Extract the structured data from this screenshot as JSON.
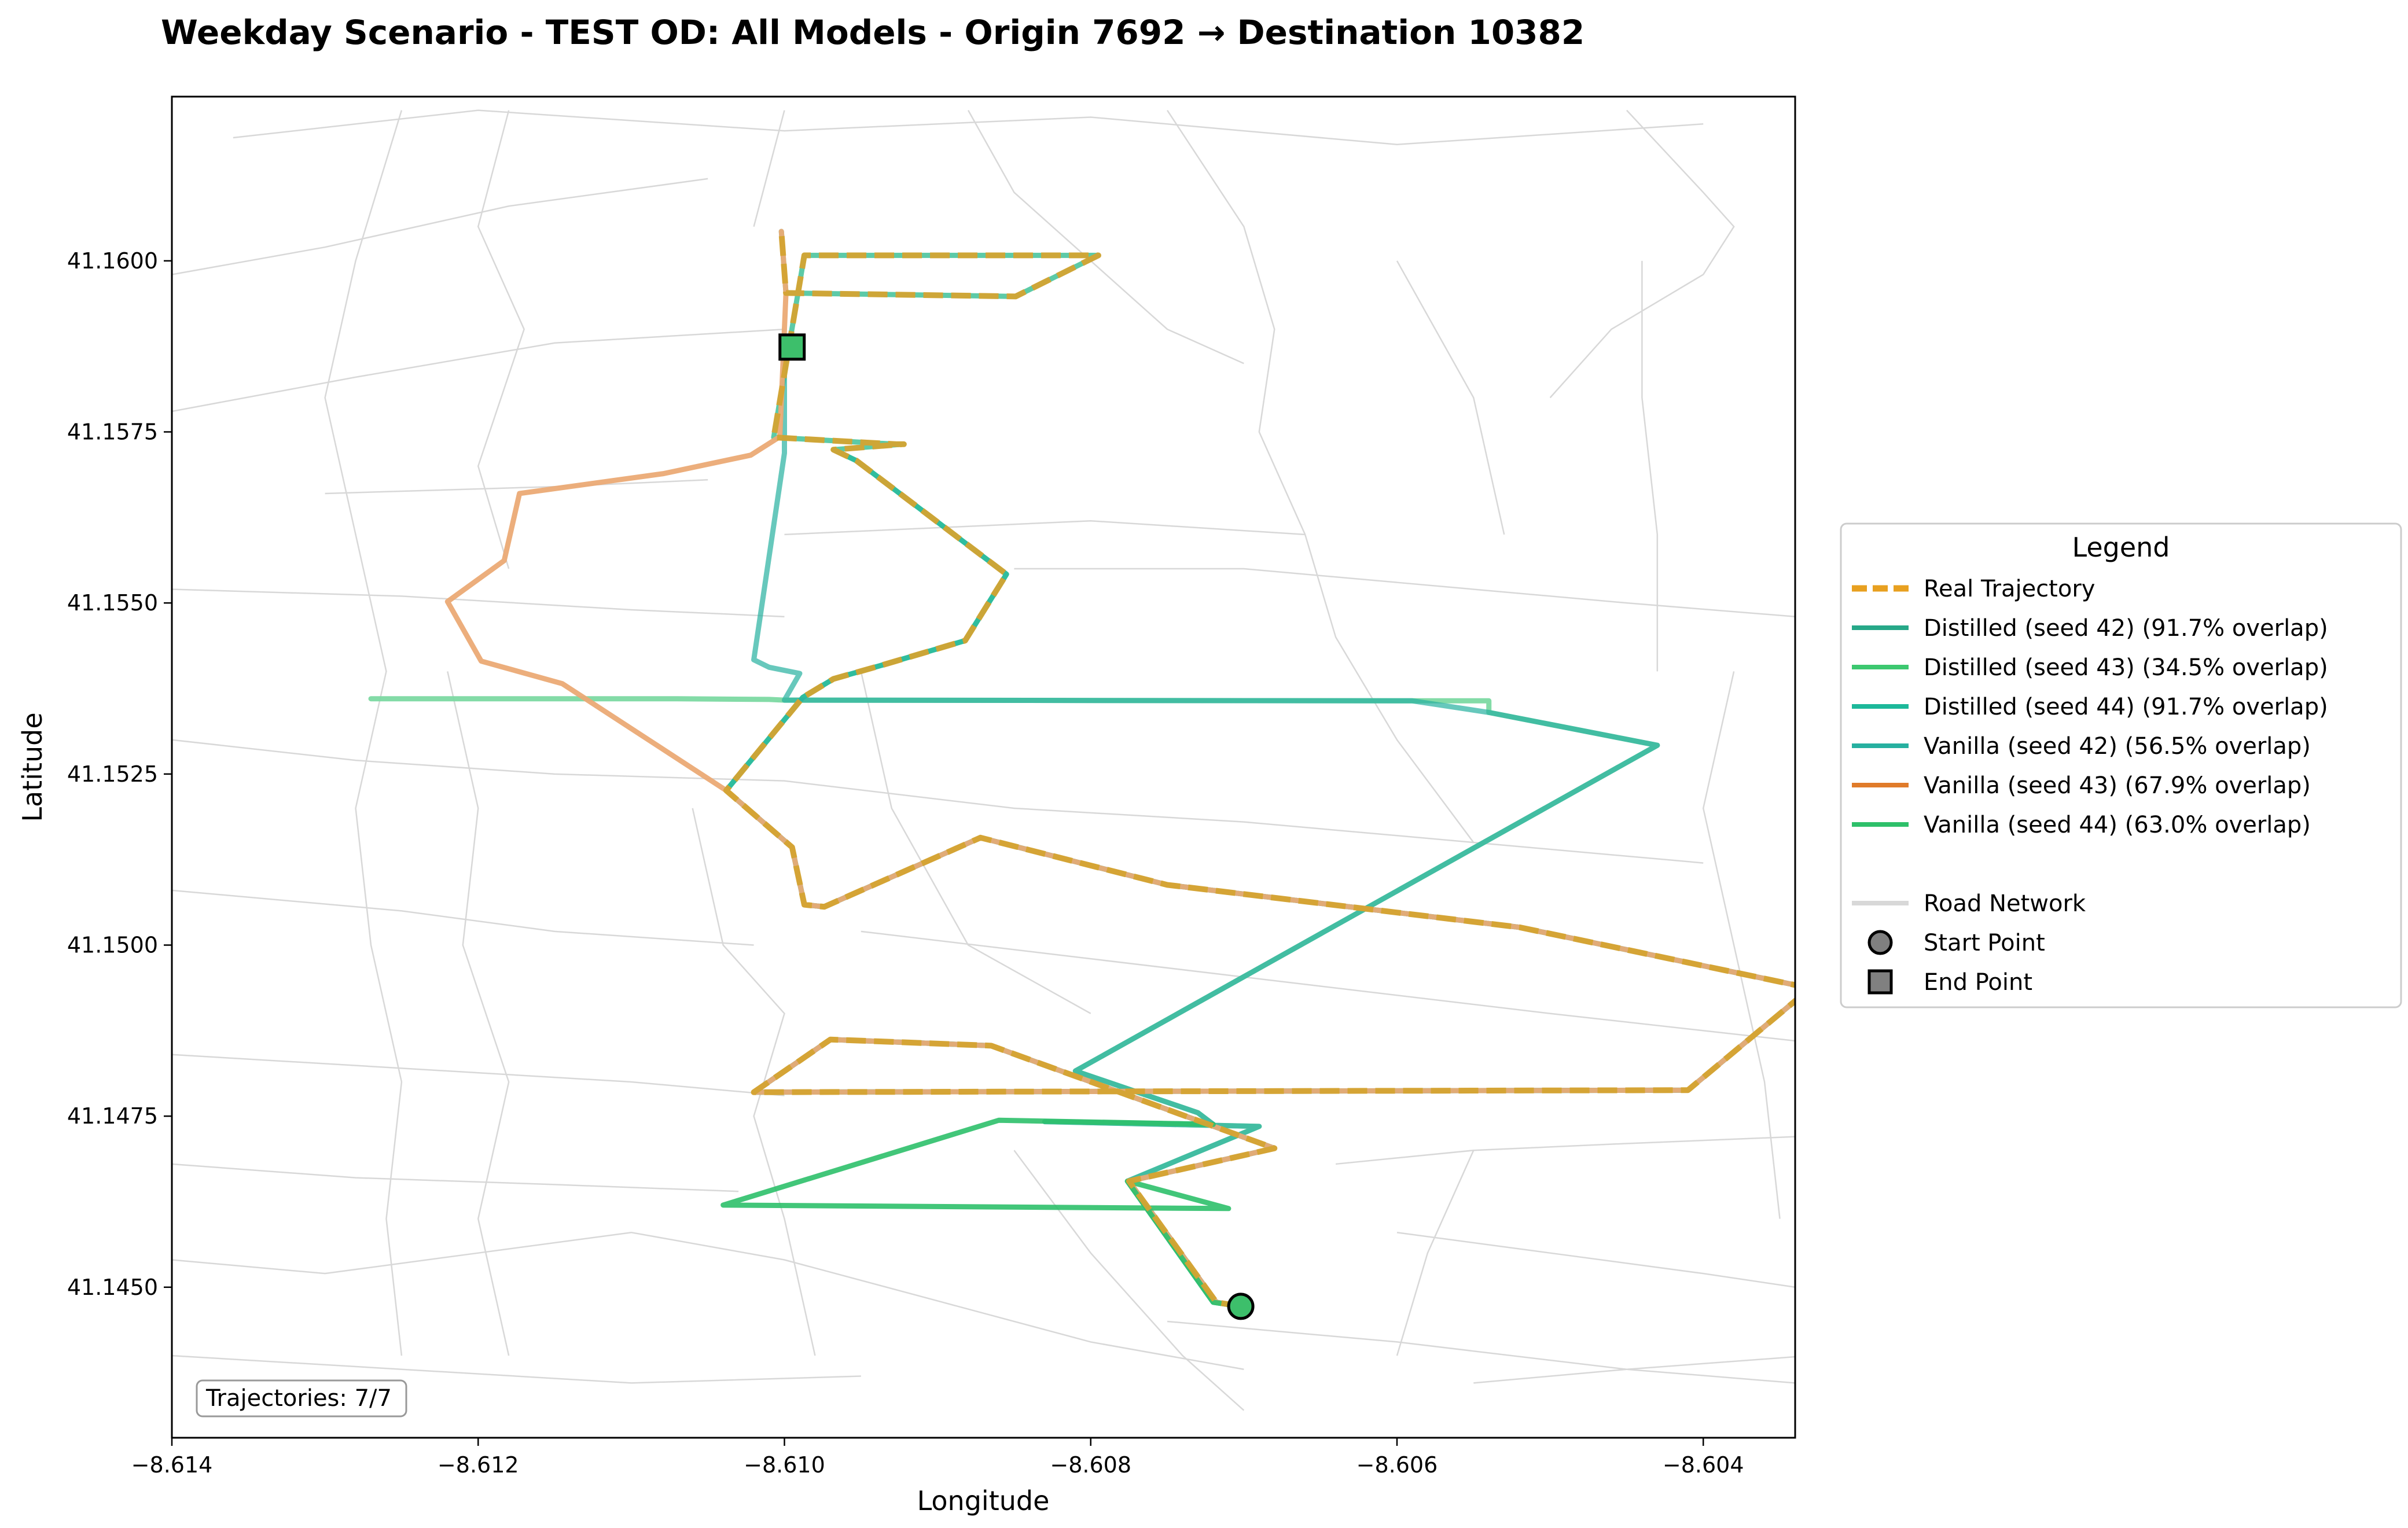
{
  "chart_data": {
    "type": "line",
    "title": "Weekday Scenario - TEST OD: All Models - Origin 7692 → Destination 10382",
    "xlabel": "Longitude",
    "ylabel": "Latitude",
    "xlim": [
      -8.614,
      -8.6034
    ],
    "ylim": [
      41.1428,
      41.1624
    ],
    "xticks": [
      -8.614,
      -8.612,
      -8.61,
      -8.608,
      -8.606,
      -8.604
    ],
    "xtick_labels": [
      "−8.614",
      "−8.612",
      "−8.610",
      "−8.608",
      "−8.606",
      "−8.604"
    ],
    "yticks": [
      41.145,
      41.1475,
      41.15,
      41.1525,
      41.155,
      41.1575,
      41.16
    ],
    "ytick_labels": [
      "41.1450",
      "41.1475",
      "41.1500",
      "41.1525",
      "41.1550",
      "41.1575",
      "41.1600"
    ],
    "grid": false,
    "legend_position": "outside right",
    "legend_title": "Legend",
    "annotation": "Trajectories: 7/7",
    "colors": {
      "real": "#E8A020",
      "real_draw": "#D4A331",
      "distilled": "#26B88A",
      "distilled_light": "#7CD9A2",
      "vanilla_orange": "#E07B2A",
      "vanilla_orange_light": "#EBAA75",
      "vanilla_green": "#2EC06A",
      "road": "#D8D8D8",
      "marker_fill": "#3DBF6B"
    },
    "series": [
      {
        "name": "Distilled (seed 42) (91.7% overlap)",
        "color": "#26B88A",
        "legend_color": "#26A888",
        "opacity": 0.75,
        "x": [
          -8.60702,
          -8.60718,
          -8.60775,
          -8.6068,
          -8.60865,
          -8.6097,
          -8.6102,
          -8.6041,
          -8.6033,
          -8.6052,
          -8.6075,
          -8.60872,
          -8.60974,
          -8.60987,
          -8.60995,
          -8.61038,
          -8.60988,
          -8.60968,
          -8.60938,
          -8.60882,
          -8.60855,
          -8.60953,
          -8.60968,
          -8.60923,
          -8.60922,
          -8.60927,
          -8.61007,
          -8.60987,
          -8.60795,
          -8.60849,
          -8.60999,
          -8.61002
        ],
        "y": [
          41.14472,
          41.14478,
          41.14655,
          41.14703,
          41.14853,
          41.14862,
          41.14785,
          41.14788,
          41.14937,
          41.15026,
          41.15088,
          41.15157,
          41.15056,
          41.15059,
          41.15143,
          41.15226,
          41.15362,
          41.15389,
          41.15408,
          41.15445,
          41.15542,
          41.15708,
          41.15724,
          41.15732,
          41.15732,
          41.15732,
          41.15742,
          41.16008,
          41.16008,
          41.15948,
          41.15953,
          41.16043
        ]
      },
      {
        "name": "Distilled (seed 43) (34.5% overlap)",
        "color": "#7CD9A2",
        "legend_color": "#3CC870",
        "opacity": 0.95,
        "x": [
          -8.60702,
          -8.6072,
          -8.60776,
          -8.6069,
          -8.6083,
          -8.6072,
          -8.6073,
          -8.6081,
          -8.6043,
          -8.6054,
          -8.6054,
          -8.6059,
          -8.61,
          -8.6101,
          -8.6107,
          -8.6125,
          -8.6127
        ],
        "y": [
          41.14472,
          41.14478,
          41.14655,
          41.14735,
          41.14742,
          41.14738,
          41.14755,
          41.14816,
          41.15292,
          41.1534,
          41.15357,
          41.15357,
          41.15358,
          41.15359,
          41.1536,
          41.1536,
          41.1536
        ]
      },
      {
        "name": "Distilled (seed 44) (91.7% overlap)",
        "color": "#1DB89A",
        "legend_color": "#1DB89A",
        "opacity": 0.7,
        "x": [
          -8.60702,
          -8.60718,
          -8.60775,
          -8.6068,
          -8.60865,
          -8.6097,
          -8.6102,
          -8.6041,
          -8.6033,
          -8.6052,
          -8.6075,
          -8.60872,
          -8.60974,
          -8.60987,
          -8.60995,
          -8.61038,
          -8.60988,
          -8.60968,
          -8.60938,
          -8.60882,
          -8.60855,
          -8.60953,
          -8.60968
        ],
        "y": [
          41.14472,
          41.14478,
          41.14655,
          41.14703,
          41.14853,
          41.14862,
          41.14785,
          41.14788,
          41.14937,
          41.15026,
          41.15088,
          41.15157,
          41.15056,
          41.15059,
          41.15143,
          41.15226,
          41.15362,
          41.15389,
          41.15408,
          41.15445,
          41.15542,
          41.15708,
          41.15724
        ]
      },
      {
        "name": "Vanilla (seed 42) (56.5% overlap)",
        "color": "#26B0A0",
        "legend_color": "#26B0A0",
        "opacity": 0.7,
        "x": [
          -8.60702,
          -8.6072,
          -8.60776,
          -8.6069,
          -8.6083,
          -8.6072,
          -8.6073,
          -8.6081,
          -8.6043,
          -8.6054,
          -8.6059,
          -8.61,
          -8.6099,
          -8.6101,
          -8.6102,
          -8.61,
          -8.61
        ],
        "y": [
          41.14472,
          41.14478,
          41.14655,
          41.14735,
          41.14742,
          41.14738,
          41.14755,
          41.14816,
          41.15292,
          41.1534,
          41.15357,
          41.15358,
          41.15397,
          41.15406,
          41.15417,
          41.15719,
          41.15875
        ]
      },
      {
        "name": "Vanilla (seed 43) (67.9% overlap)",
        "color": "#EBAA75",
        "legend_color": "#E07B2A",
        "opacity": 0.95,
        "x": [
          -8.60702,
          -8.60718,
          -8.60775,
          -8.6068,
          -8.60865,
          -8.6097,
          -8.6102,
          -8.6041,
          -8.6033,
          -8.6052,
          -8.6075,
          -8.60872,
          -8.60974,
          -8.60987,
          -8.60995,
          -8.61038,
          -8.61145,
          -8.61198,
          -8.6122,
          -8.61183,
          -8.61173,
          -8.61079,
          -8.61022,
          -8.61003,
          -8.60999,
          -8.61002
        ],
        "y": [
          41.14472,
          41.14478,
          41.14655,
          41.14703,
          41.14853,
          41.14862,
          41.14785,
          41.14788,
          41.14937,
          41.15026,
          41.15088,
          41.15157,
          41.15056,
          41.15059,
          41.15143,
          41.15226,
          41.15382,
          41.15415,
          41.15502,
          41.15562,
          41.1566,
          41.15689,
          41.15716,
          41.15743,
          41.15953,
          41.16043
        ]
      },
      {
        "name": "Vanilla (seed 44) (63.0% overlap)",
        "color": "#2EC06A",
        "legend_color": "#2EC06A",
        "opacity": 0.9,
        "x": [
          -8.60702,
          -8.6072,
          -8.60776,
          -8.6071,
          -8.6104,
          -8.6086,
          -8.6072
        ],
        "y": [
          41.14472,
          41.14478,
          41.14655,
          41.14615,
          41.1462,
          41.14744,
          41.14738
        ]
      },
      {
        "name": "Real Trajectory",
        "color": "#D4A331",
        "legend_color": "#E8A020",
        "dashed": true,
        "opacity": 0.95,
        "x": [
          -8.60702,
          -8.60718,
          -8.60775,
          -8.6068,
          -8.60865,
          -8.6097,
          -8.6102,
          -8.6041,
          -8.6033,
          -8.6052,
          -8.6075,
          -8.60872,
          -8.60974,
          -8.60987,
          -8.60995,
          -8.61038,
          -8.60988,
          -8.60968,
          -8.60938,
          -8.60882,
          -8.60855,
          -8.60953,
          -8.60968,
          -8.60923,
          -8.60922,
          -8.60927,
          -8.61007,
          -8.60987,
          -8.60795,
          -8.60849,
          -8.60999,
          -8.61002
        ],
        "y": [
          41.14472,
          41.14478,
          41.14655,
          41.14703,
          41.14853,
          41.14862,
          41.14785,
          41.14788,
          41.14937,
          41.15026,
          41.15088,
          41.15157,
          41.15056,
          41.15059,
          41.15143,
          41.15226,
          41.15362,
          41.15389,
          41.15408,
          41.15445,
          41.15542,
          41.15708,
          41.15724,
          41.15732,
          41.15732,
          41.15732,
          41.15742,
          41.16008,
          41.16008,
          41.15948,
          41.15953,
          41.16043
        ]
      }
    ],
    "extra_legend": [
      {
        "name": "Road Network",
        "kind": "line",
        "color": "#D8D8D8"
      },
      {
        "name": "Start Point",
        "kind": "circle",
        "color": "#808080"
      },
      {
        "name": "End Point",
        "kind": "square",
        "color": "#808080"
      }
    ],
    "start_point": {
      "x": -8.60702,
      "y": 41.14472
    },
    "end_point": {
      "x": -8.60995,
      "y": 41.15874
    },
    "roads": [
      [
        [
          -8.6136,
          41.1618
        ],
        [
          -8.612,
          41.1622
        ],
        [
          -8.61,
          41.1619
        ],
        [
          -8.608,
          41.1621
        ],
        [
          -8.606,
          41.1617
        ],
        [
          -8.604,
          41.162
        ]
      ],
      [
        [
          -8.614,
          41.1598
        ],
        [
          -8.613,
          41.1602
        ],
        [
          -8.6118,
          41.1608
        ],
        [
          -8.6105,
          41.1612
        ]
      ],
      [
        [
          -8.614,
          41.1578
        ],
        [
          -8.6128,
          41.1583
        ],
        [
          -8.6115,
          41.1588
        ],
        [
          -8.61,
          41.159
        ]
      ],
      [
        [
          -8.613,
          41.1566
        ],
        [
          -8.6115,
          41.1567
        ],
        [
          -8.6105,
          41.1568
        ]
      ],
      [
        [
          -8.614,
          41.1552
        ],
        [
          -8.6125,
          41.1551
        ],
        [
          -8.611,
          41.1549
        ],
        [
          -8.61,
          41.1548
        ]
      ],
      [
        [
          -8.61,
          41.156
        ],
        [
          -8.609,
          41.1561
        ],
        [
          -8.608,
          41.1562
        ],
        [
          -8.6066,
          41.156
        ]
      ],
      [
        [
          -8.6085,
          41.1555
        ],
        [
          -8.607,
          41.1555
        ],
        [
          -8.606,
          41.1553
        ],
        [
          -8.6045,
          41.155
        ],
        [
          -8.6034,
          41.1548
        ]
      ],
      [
        [
          -8.614,
          41.153
        ],
        [
          -8.6128,
          41.1527
        ],
        [
          -8.6115,
          41.1525
        ],
        [
          -8.61,
          41.1524
        ],
        [
          -8.6085,
          41.152
        ],
        [
          -8.607,
          41.1518
        ],
        [
          -8.6055,
          41.1515
        ],
        [
          -8.604,
          41.1512
        ]
      ],
      [
        [
          -8.614,
          41.1508
        ],
        [
          -8.6125,
          41.1505
        ],
        [
          -8.6115,
          41.1502
        ],
        [
          -8.6102,
          41.15
        ]
      ],
      [
        [
          -8.6095,
          41.1502
        ],
        [
          -8.608,
          41.1498
        ],
        [
          -8.6065,
          41.1494
        ],
        [
          -8.605,
          41.149
        ],
        [
          -8.6034,
          41.1486
        ]
      ],
      [
        [
          -8.614,
          41.1484
        ],
        [
          -8.6125,
          41.1482
        ],
        [
          -8.611,
          41.148
        ],
        [
          -8.61,
          41.1478
        ]
      ],
      [
        [
          -8.614,
          41.1468
        ],
        [
          -8.6128,
          41.1466
        ],
        [
          -8.6115,
          41.1465
        ],
        [
          -8.6103,
          41.1464
        ]
      ],
      [
        [
          -8.614,
          41.1454
        ],
        [
          -8.613,
          41.1452
        ],
        [
          -8.612,
          41.1455
        ],
        [
          -8.611,
          41.1458
        ],
        [
          -8.61,
          41.1454
        ],
        [
          -8.609,
          41.1448
        ],
        [
          -8.608,
          41.1442
        ],
        [
          -8.607,
          41.1438
        ]
      ],
      [
        [
          -8.6064,
          41.1468
        ],
        [
          -8.6055,
          41.147
        ],
        [
          -8.6045,
          41.1471
        ],
        [
          -8.6034,
          41.1472
        ]
      ],
      [
        [
          -8.614,
          41.144
        ],
        [
          -8.6125,
          41.1438
        ],
        [
          -8.611,
          41.1436
        ],
        [
          -8.6095,
          41.1437
        ]
      ],
      [
        [
          -8.606,
          41.1458
        ],
        [
          -8.605,
          41.1455
        ],
        [
          -8.604,
          41.1452
        ],
        [
          -8.6034,
          41.145
        ]
      ],
      [
        [
          -8.6075,
          41.1445
        ],
        [
          -8.606,
          41.1442
        ],
        [
          -8.6045,
          41.1438
        ],
        [
          -8.6034,
          41.1436
        ]
      ],
      [
        [
          -8.6125,
          41.1622
        ],
        [
          -8.6128,
          41.16
        ],
        [
          -8.613,
          41.158
        ],
        [
          -8.6128,
          41.156
        ],
        [
          -8.6126,
          41.154
        ],
        [
          -8.6128,
          41.152
        ],
        [
          -8.6127,
          41.15
        ],
        [
          -8.6125,
          41.148
        ],
        [
          -8.6126,
          41.146
        ],
        [
          -8.6125,
          41.144
        ]
      ],
      [
        [
          -8.6118,
          41.1622
        ],
        [
          -8.612,
          41.1605
        ],
        [
          -8.6117,
          41.159
        ],
        [
          -8.612,
          41.157
        ],
        [
          -8.6118,
          41.1555
        ]
      ],
      [
        [
          -8.6122,
          41.154
        ],
        [
          -8.612,
          41.152
        ],
        [
          -8.6121,
          41.15
        ],
        [
          -8.6118,
          41.148
        ],
        [
          -8.612,
          41.146
        ],
        [
          -8.6118,
          41.144
        ]
      ],
      [
        [
          -8.61,
          41.1622
        ],
        [
          -8.6102,
          41.1605
        ]
      ],
      [
        [
          -8.6095,
          41.154
        ],
        [
          -8.6093,
          41.152
        ],
        [
          -8.6088,
          41.15
        ],
        [
          -8.608,
          41.149
        ]
      ],
      [
        [
          -8.6088,
          41.1622
        ],
        [
          -8.6085,
          41.161
        ],
        [
          -8.608,
          41.16
        ],
        [
          -8.6075,
          41.159
        ],
        [
          -8.607,
          41.1585
        ]
      ],
      [
        [
          -8.6075,
          41.1622
        ],
        [
          -8.607,
          41.1605
        ],
        [
          -8.6068,
          41.159
        ],
        [
          -8.6069,
          41.1575
        ],
        [
          -8.6066,
          41.156
        ],
        [
          -8.6064,
          41.1545
        ],
        [
          -8.606,
          41.153
        ],
        [
          -8.6055,
          41.1515
        ]
      ],
      [
        [
          -8.606,
          41.16
        ],
        [
          -8.6055,
          41.158
        ],
        [
          -8.6053,
          41.156
        ]
      ],
      [
        [
          -8.6045,
          41.1622
        ],
        [
          -8.604,
          41.161
        ],
        [
          -8.6038,
          41.1605
        ],
        [
          -8.604,
          41.1598
        ],
        [
          -8.6046,
          41.159
        ],
        [
          -8.605,
          41.158
        ]
      ],
      [
        [
          -8.6044,
          41.16
        ],
        [
          -8.6044,
          41.158
        ],
        [
          -8.6043,
          41.156
        ],
        [
          -8.6043,
          41.154
        ]
      ],
      [
        [
          -8.6038,
          41.154
        ],
        [
          -8.604,
          41.152
        ],
        [
          -8.6038,
          41.15
        ],
        [
          -8.6036,
          41.148
        ],
        [
          -8.6035,
          41.146
        ]
      ],
      [
        [
          -8.6106,
          41.152
        ],
        [
          -8.6104,
          41.15
        ],
        [
          -8.61,
          41.149
        ],
        [
          -8.6102,
          41.1475
        ],
        [
          -8.61,
          41.146
        ],
        [
          -8.6098,
          41.144
        ]
      ],
      [
        [
          -8.6085,
          41.147
        ],
        [
          -8.608,
          41.1455
        ],
        [
          -8.6074,
          41.144
        ],
        [
          -8.607,
          41.1432
        ]
      ],
      [
        [
          -8.6055,
          41.147
        ],
        [
          -8.6058,
          41.1455
        ],
        [
          -8.606,
          41.144
        ]
      ],
      [
        [
          -8.6033,
          41.144
        ],
        [
          -8.6045,
          41.1438
        ],
        [
          -8.6055,
          41.1436
        ]
      ]
    ]
  }
}
